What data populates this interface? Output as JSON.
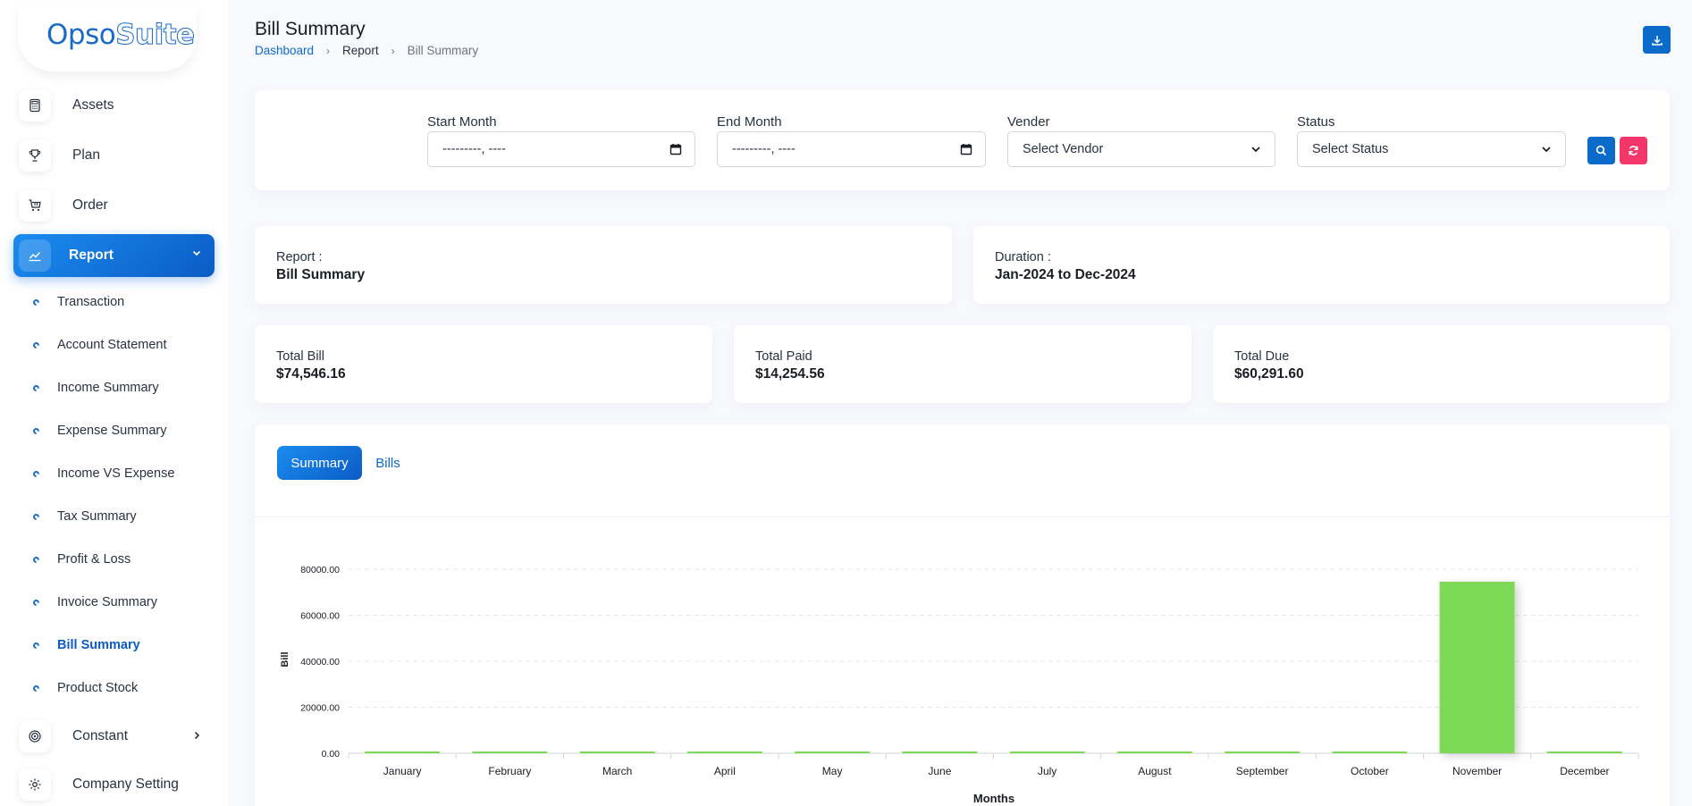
{
  "app": {
    "logo_part1": "Opso",
    "logo_part2": "Suite"
  },
  "sidebar": {
    "items": [
      {
        "label": "Assets",
        "icon": "calculator-icon"
      },
      {
        "label": "Plan",
        "icon": "trophy-icon"
      },
      {
        "label": "Order",
        "icon": "cart-icon"
      },
      {
        "label": "Report",
        "icon": "chart-line-icon"
      },
      {
        "label": "Constant",
        "icon": "spiral-icon"
      },
      {
        "label": "Company Setting",
        "icon": "gear-icon"
      }
    ],
    "report_sub": [
      "Transaction",
      "Account Statement",
      "Income Summary",
      "Expense Summary",
      "Income VS Expense",
      "Tax Summary",
      "Profit & Loss",
      "Invoice Summary",
      "Bill Summary",
      "Product Stock"
    ],
    "active_sub": "Bill Summary"
  },
  "header": {
    "title": "Bill Summary",
    "breadcrumb": [
      "Dashboard",
      "Report",
      "Bill Summary"
    ]
  },
  "filters": {
    "start_month_label": "Start Month",
    "start_month_value": "---------, ----",
    "end_month_label": "End Month",
    "end_month_value": "---------, ----",
    "vendor_label": "Vender",
    "vendor_value": "Select Vendor",
    "status_label": "Status",
    "status_value": "Select Status"
  },
  "report_info": {
    "report_label": "Report :",
    "report_value": "Bill Summary",
    "duration_label": "Duration :",
    "duration_value": "Jan-2024 to Dec-2024"
  },
  "totals": {
    "total_bill_label": "Total Bill",
    "total_bill_value": "$74,546.16",
    "total_paid_label": "Total Paid",
    "total_paid_value": "$14,254.56",
    "total_due_label": "Total Due",
    "total_due_value": "$60,291.60"
  },
  "tabs": [
    "Summary",
    "Bills"
  ],
  "colors": {
    "primary": "#0b6bcb",
    "danger": "#f5366b",
    "bar": "#7ed957"
  },
  "chart_data": {
    "type": "bar",
    "categories": [
      "January",
      "February",
      "March",
      "April",
      "May",
      "June",
      "July",
      "August",
      "September",
      "October",
      "November",
      "December"
    ],
    "values": [
      0,
      0,
      0,
      0,
      0,
      0,
      0,
      0,
      0,
      0,
      74546.16,
      0
    ],
    "xlabel": "Months",
    "ylabel": "Bill",
    "ylim": [
      0,
      80000
    ],
    "yticks": [
      "0.00",
      "20000.00",
      "40000.00",
      "60000.00",
      "80000.00"
    ],
    "grid": true
  }
}
